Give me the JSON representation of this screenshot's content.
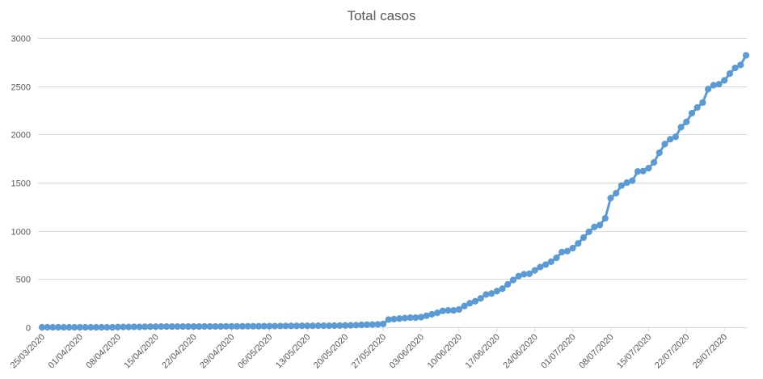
{
  "chart_data": {
    "type": "line",
    "title": "Total casos",
    "xlabel": "",
    "ylabel": "",
    "ylim": [
      0,
      3000
    ],
    "yticks": [
      0,
      500,
      1000,
      1500,
      2000,
      2500,
      3000
    ],
    "grid": true,
    "legend": "none",
    "x_tick_labels": [
      "25/03/2020",
      "01/04/2020",
      "08/04/2020",
      "15/04/2020",
      "22/04/2020",
      "29/04/2020",
      "06/05/2020",
      "13/05/2020",
      "20/05/2020",
      "27/05/2020",
      "03/06/2020",
      "10/06/2020",
      "17/06/2020",
      "24/06/2020",
      "01/07/2020",
      "08/07/2020",
      "15/07/2020",
      "22/07/2020",
      "29/07/2020"
    ],
    "color": "#5b9bd5",
    "series": [
      {
        "name": "Total casos",
        "values": [
          0,
          0,
          0,
          0,
          0,
          0,
          0,
          0,
          0,
          0,
          0,
          0,
          0,
          0,
          2,
          3,
          3,
          4,
          4,
          5,
          6,
          6,
          7,
          7,
          7,
          7,
          8,
          8,
          8,
          8,
          9,
          9,
          9,
          9,
          10,
          10,
          10,
          10,
          11,
          11,
          11,
          12,
          12,
          12,
          13,
          14,
          14,
          14,
          15,
          15,
          15,
          16,
          16,
          16,
          17,
          18,
          19,
          20,
          22,
          25,
          27,
          28,
          30,
          35,
          80,
          85,
          90,
          95,
          100,
          100,
          105,
          120,
          135,
          150,
          170,
          175,
          175,
          185,
          220,
          250,
          270,
          300,
          340,
          350,
          375,
          400,
          445,
          490,
          530,
          550,
          555,
          590,
          625,
          650,
          680,
          720,
          780,
          790,
          820,
          870,
          930,
          990,
          1040,
          1060,
          1130,
          1340,
          1390,
          1470,
          1500,
          1520,
          1615,
          1620,
          1650,
          1710,
          1810,
          1900,
          1950,
          1975,
          2075,
          2130,
          2220,
          2280,
          2330,
          2470,
          2510,
          2520,
          2560,
          2630,
          2690,
          2720,
          2820
        ]
      }
    ]
  }
}
